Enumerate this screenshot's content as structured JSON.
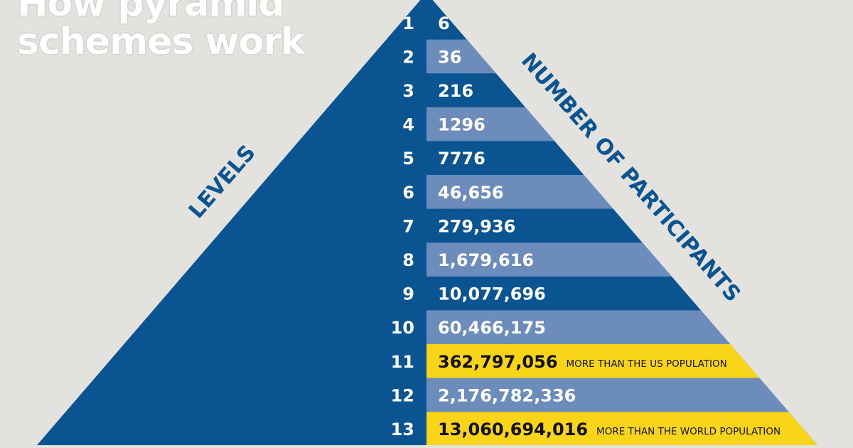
{
  "title": {
    "line1": "How pyramid",
    "line2": "schemes work"
  },
  "axis_labels": {
    "levels": "LEVELS",
    "participants": "NUMBER OF PARTICIPANTS"
  },
  "colors": {
    "background": "#e3e2df",
    "pyramid_dark": "#0a5492",
    "band_light": "#6c8dbb",
    "highlight": "#f9d51a",
    "text_light": "#ffffff",
    "text_dark": "#111111"
  },
  "rows": [
    {
      "level": "1",
      "value": "6",
      "style": "dark",
      "note": ""
    },
    {
      "level": "2",
      "value": "36",
      "style": "light",
      "note": ""
    },
    {
      "level": "3",
      "value": "216",
      "style": "dark",
      "note": ""
    },
    {
      "level": "4",
      "value": "1296",
      "style": "light",
      "note": ""
    },
    {
      "level": "5",
      "value": "7776",
      "style": "dark",
      "note": ""
    },
    {
      "level": "6",
      "value": "46,656",
      "style": "light",
      "note": ""
    },
    {
      "level": "7",
      "value": "279,936",
      "style": "dark",
      "note": ""
    },
    {
      "level": "8",
      "value": "1,679,616",
      "style": "light",
      "note": ""
    },
    {
      "level": "9",
      "value": "10,077,696",
      "style": "dark",
      "note": ""
    },
    {
      "level": "10",
      "value": "60,466,175",
      "style": "light",
      "note": ""
    },
    {
      "level": "11",
      "value": "362,797,056",
      "style": "highlight",
      "note": "MORE THAN THE US POPULATION"
    },
    {
      "level": "12",
      "value": "2,176,782,336",
      "style": "light",
      "note": ""
    },
    {
      "level": "13",
      "value": "13,060,694,016",
      "style": "highlight",
      "note": "MORE THAN THE WORLD POPULATION"
    }
  ]
}
